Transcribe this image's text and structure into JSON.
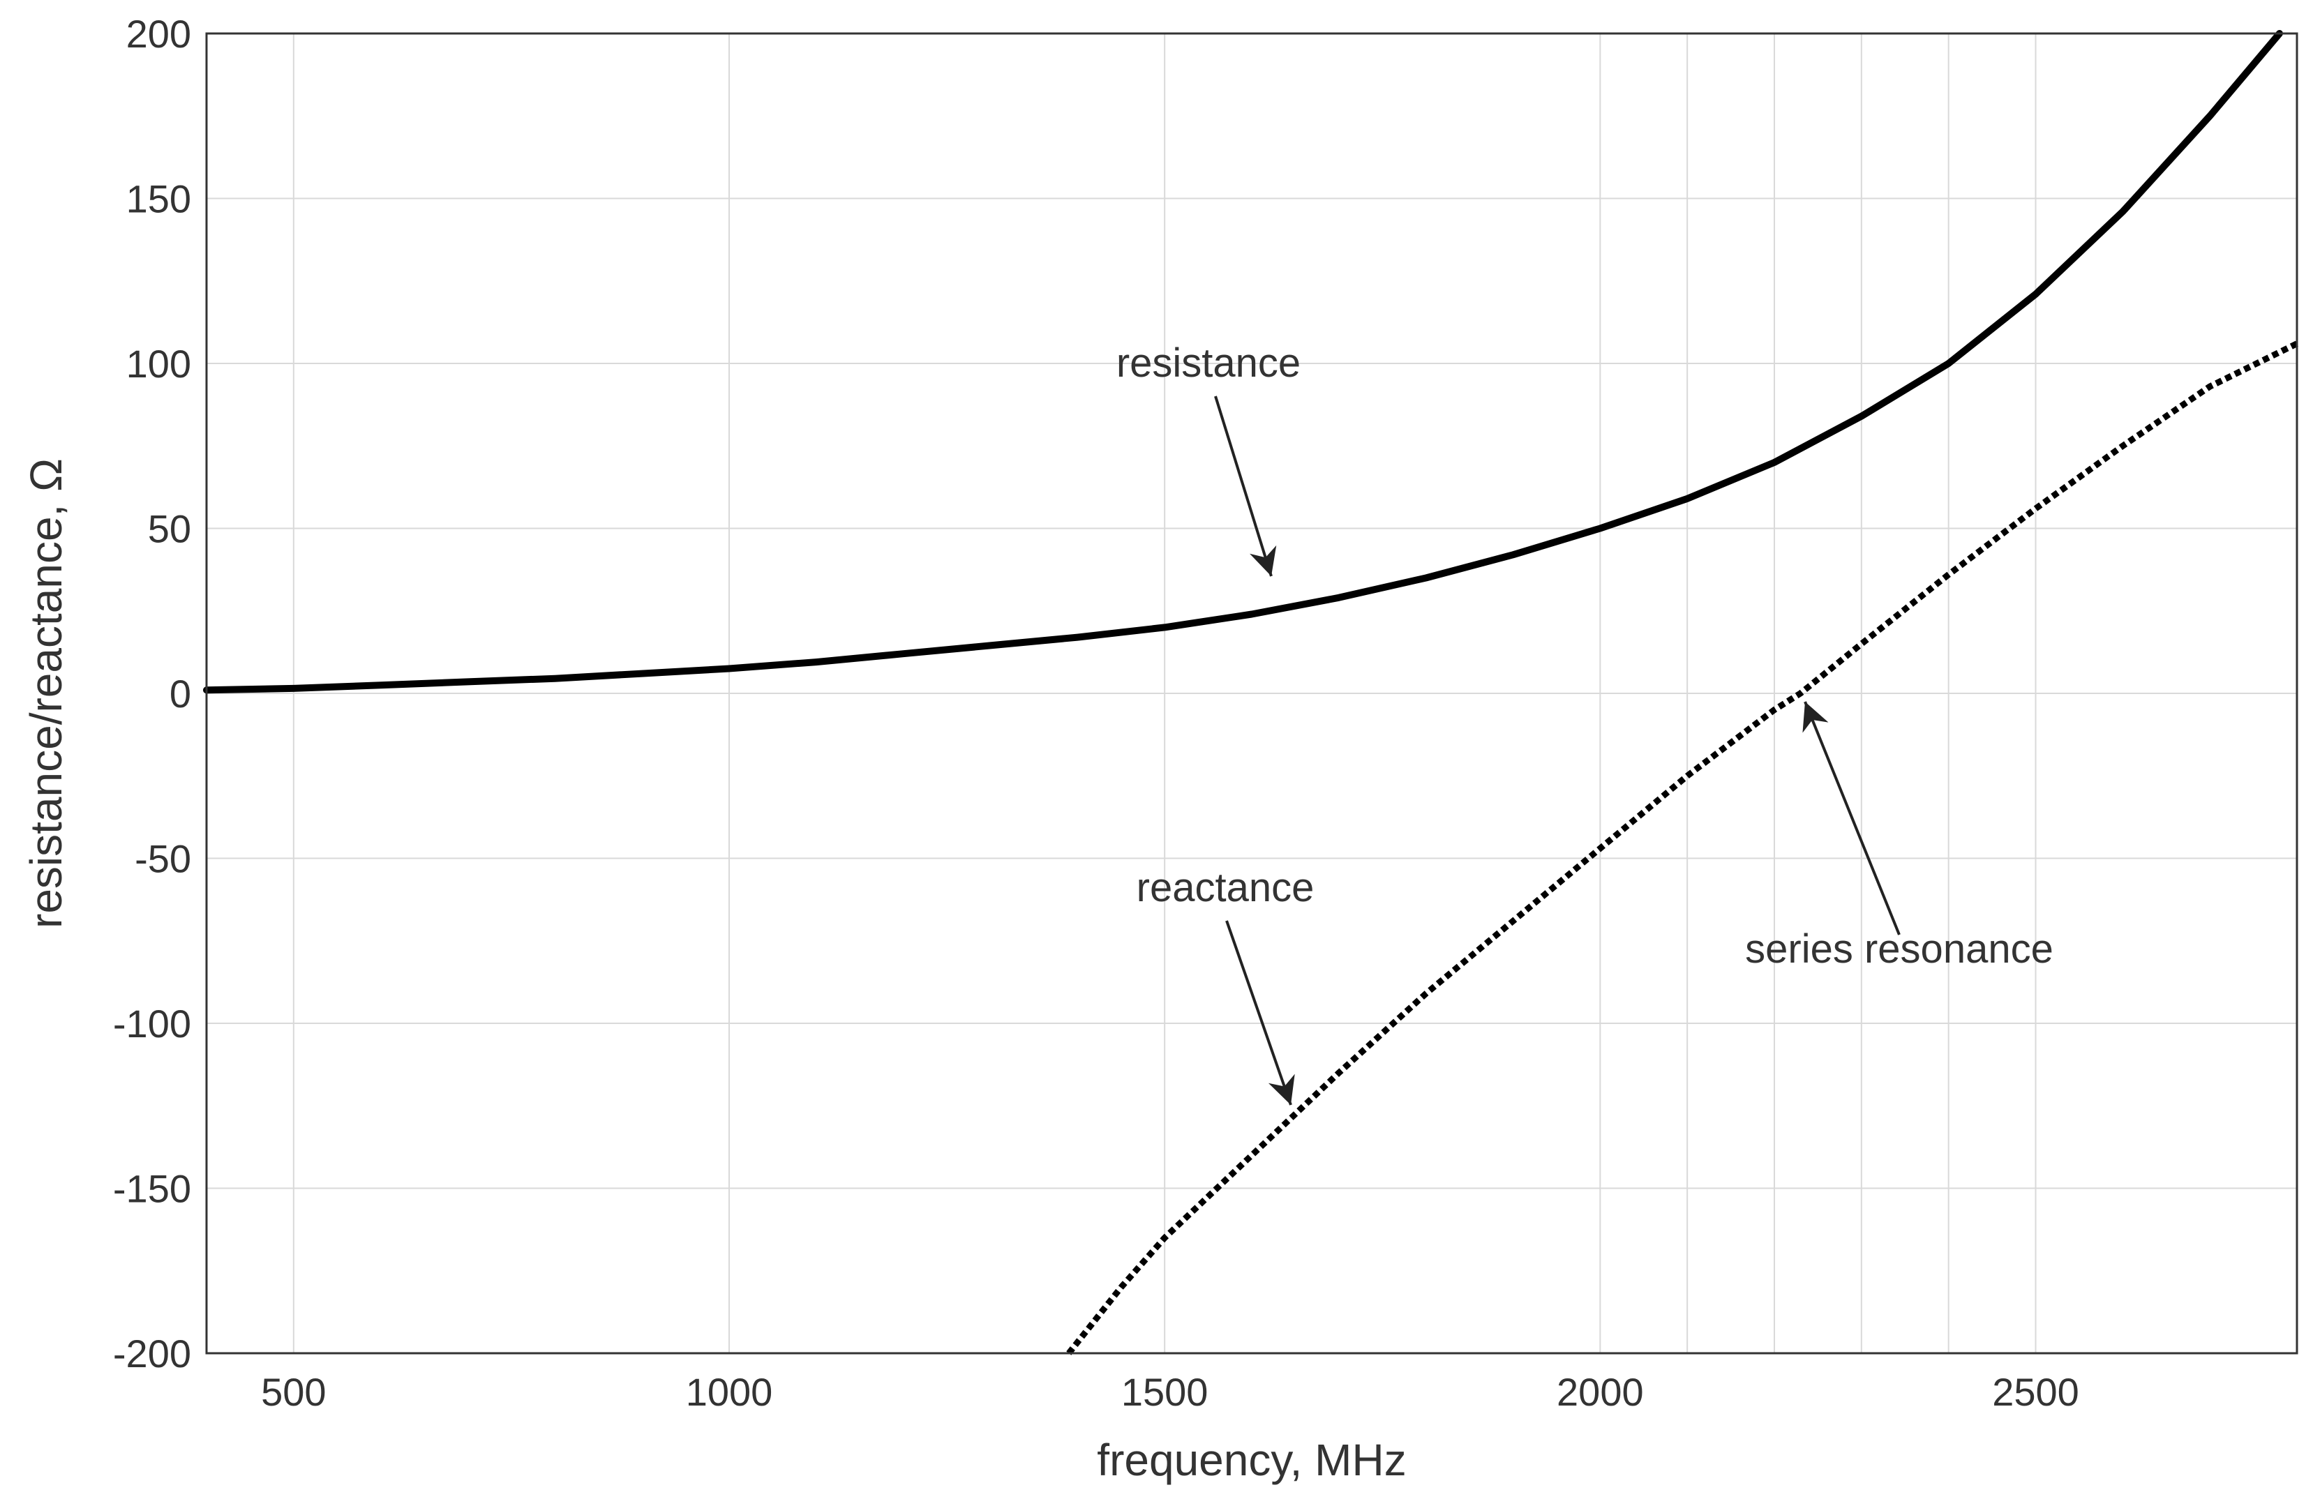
{
  "chart_data": {
    "type": "line",
    "title": "",
    "xlabel": "frequency, MHz",
    "ylabel": "resistance/reactance,  Ω",
    "xlim": [
      400,
      2800
    ],
    "ylim": [
      -200,
      200
    ],
    "xticks": [
      500,
      1000,
      1500,
      2000,
      2500
    ],
    "yticks": [
      200,
      150,
      100,
      50,
      0,
      -50,
      -100,
      -150,
      -200
    ],
    "x_gridlines": [
      500,
      1000,
      1500,
      2000,
      2100,
      2200,
      2300,
      2400,
      2500
    ],
    "y_gridlines": [
      150,
      100,
      50,
      0,
      -50,
      -100,
      -150
    ],
    "grid": true,
    "legend": "none",
    "series": [
      {
        "style": "solid",
        "color": "#000000",
        "x": [
          400,
          500,
          600,
          700,
          800,
          900,
          1000,
          1100,
          1200,
          1300,
          1400,
          1500,
          1600,
          1700,
          1800,
          1900,
          2000,
          2100,
          2200,
          2300,
          2400,
          2500,
          2600,
          2700,
          2780
        ],
        "y": [
          1,
          1.5,
          2.5,
          3.5,
          4.5,
          6,
          7.5,
          9.5,
          12,
          14.5,
          17,
          20,
          24,
          29,
          35,
          42,
          50,
          59,
          70,
          84,
          100,
          121,
          146,
          175,
          200
        ]
      },
      {
        "style": "dotted",
        "color": "#000000",
        "x": [
          1390,
          1450,
          1500,
          1600,
          1700,
          1800,
          1900,
          2000,
          2100,
          2200,
          2230,
          2300,
          2400,
          2500,
          2600,
          2700,
          2800
        ],
        "y": [
          -200,
          -180,
          -165,
          -140,
          -115,
          -91,
          -69,
          -47,
          -25,
          -5,
          0,
          15,
          36,
          56,
          75,
          93,
          106
        ]
      }
    ],
    "annotations": [
      {
        "text": "resistance",
        "label_at": [
          1940,
          92
        ],
        "arrow_from": [
          1940,
          80
        ],
        "arrow_to": [
          1635,
          34
        ]
      },
      {
        "text": "reactance",
        "label_at": [
          1940,
          -80
        ],
        "arrow_from": [
          1940,
          -68
        ],
        "arrow_to": [
          1655,
          -124
        ]
      },
      {
        "text": "series resonance",
        "label_at": [
          2200,
          -88
        ],
        "arrow_from": [
          2200,
          -76
        ],
        "arrow_to": [
          2233,
          -2
        ]
      }
    ]
  }
}
